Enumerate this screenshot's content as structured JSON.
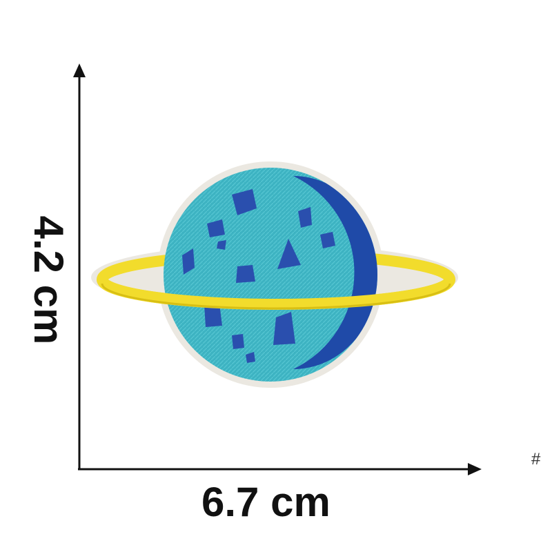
{
  "dimensions": {
    "width_label": "6.7 cm",
    "height_label": "4.2 cm"
  },
  "corner_mark": "#",
  "patch": {
    "subject": "planet-patch",
    "colors": {
      "planet": "#3db3c2",
      "planet_shadow": "#1f4aa8",
      "ring": "#f2dc2c",
      "ring_shadow": "#d4ba12",
      "border": "#e9e6de",
      "spots": "#2a4fae"
    }
  }
}
